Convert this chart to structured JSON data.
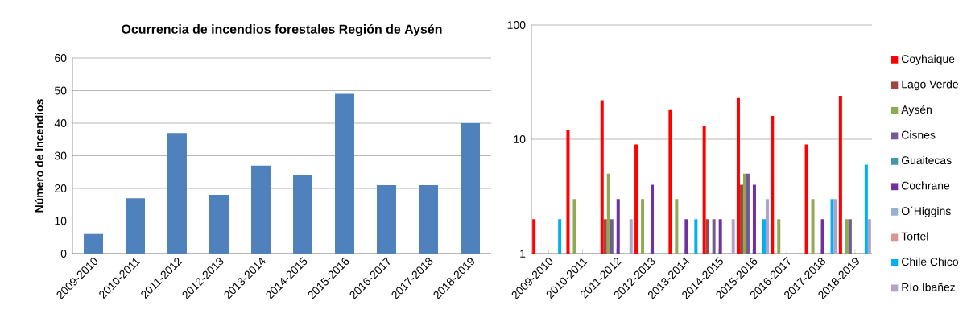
{
  "chart_data": [
    {
      "type": "bar",
      "title": "Ocurrencia de incendios forestales Región de Aysén",
      "ylabel": "Número de Incendios",
      "categories": [
        "2009-2010",
        "2010-2011",
        "2011-2012",
        "2012-2013",
        "2013-2014",
        "2014-2015",
        "2015-2016",
        "2016-2017",
        "2017-2018",
        "2018-2019"
      ],
      "values": [
        6,
        17,
        37,
        18,
        27,
        24,
        49,
        21,
        21,
        40
      ],
      "color": "#4f81bd",
      "ylim": [
        0,
        60
      ],
      "yticks": [
        0,
        10,
        20,
        30,
        40,
        50,
        60
      ],
      "grid": "y"
    },
    {
      "type": "bar",
      "categories": [
        "2009-2010",
        "2010-2011",
        "2011-2012",
        "2012-2013",
        "2013-2014",
        "2014-2015",
        "2015-2016",
        "2016-2017",
        "2017-2018",
        "2018-2019"
      ],
      "log": true,
      "ylim": [
        1,
        100
      ],
      "yticks": [
        1,
        10,
        100
      ],
      "grid": "y",
      "legend": "right",
      "series": [
        {
          "name": "Coyhaique",
          "color": "#ff0000",
          "values": [
            2,
            12,
            22,
            9,
            18,
            13,
            23,
            16,
            9,
            24
          ]
        },
        {
          "name": "Lago Verde",
          "color": "#a0453f",
          "values": [
            null,
            null,
            2,
            null,
            null,
            2,
            4,
            null,
            null,
            null
          ]
        },
        {
          "name": "Aysén",
          "color": "#8faa55",
          "values": [
            null,
            3,
            5,
            3,
            3,
            null,
            5,
            2,
            3,
            2
          ]
        },
        {
          "name": "Cisnes",
          "color": "#735a96",
          "values": [
            null,
            null,
            2,
            null,
            null,
            2,
            5,
            null,
            null,
            2
          ]
        },
        {
          "name": "Guaitecas",
          "color": "#4098a8",
          "values": [
            null,
            null,
            null,
            null,
            null,
            null,
            null,
            null,
            null,
            null
          ]
        },
        {
          "name": "Cochrane",
          "color": "#7030a0",
          "values": [
            null,
            null,
            3,
            4,
            2,
            2,
            4,
            null,
            2,
            null
          ]
        },
        {
          "name": "O´Higgins",
          "color": "#95b3d7",
          "values": [
            null,
            null,
            null,
            null,
            null,
            null,
            null,
            null,
            null,
            null
          ]
        },
        {
          "name": "Tortel",
          "color": "#d99694",
          "values": [
            null,
            null,
            null,
            null,
            null,
            null,
            null,
            null,
            null,
            null
          ]
        },
        {
          "name": "Chile Chico",
          "color": "#00b0f0",
          "values": [
            2,
            null,
            null,
            null,
            2,
            null,
            2,
            null,
            3,
            6
          ]
        },
        {
          "name": "Río Ibañez",
          "color": "#b3a2c7",
          "values": [
            null,
            null,
            2,
            null,
            null,
            2,
            3,
            null,
            3,
            2
          ]
        }
      ]
    }
  ]
}
